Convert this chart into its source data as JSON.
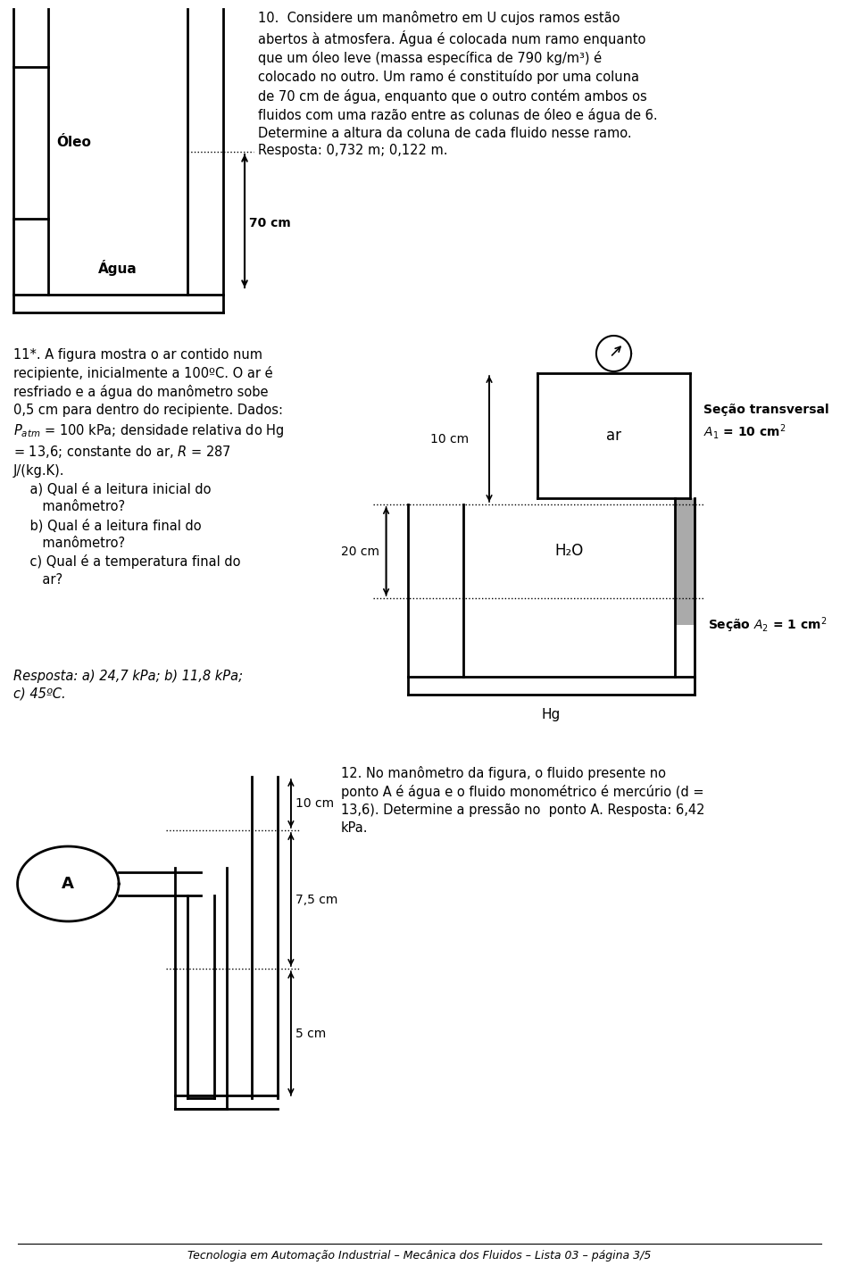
{
  "bg_color": "#ffffff",
  "text_color": "#000000",
  "problem10_text": "10.  Considere um manômetro em U cujos ramos estão\nabertos à atmosfera. Água é colocada num ramo enquanto\nque um óleo leve (massa específica de 790 kg/m³) é\ncolocado no outro. Um ramo é constituído por uma coluna\nde 70 cm de água, enquanto que o outro contém ambos os\nfluidos com uma razão entre as colunas de óleo e água de 6.\nDetermine a altura da coluna de cada fluido nesse ramo.\nResposta: 0,732 m; 0,122 m.",
  "problem11_full_text": "11*. A figura mostra o ar contido num\nrecipiente, inicialmente a 100ºC. O ar é\nresfriado e a água do manômetro sobe\n0,5 cm para dentro do recipiente. Dados:\n$P_{atm}$ = 100 kPa; densidade relativa do Hg\n= 13,6; constante do ar, $R$ = 287\nJ/(kg.K).\n    a) Qual é a leitura inicial do\n       manômetro?\n    b) Qual é a leitura final do\n       manômetro?\n    c) Qual é a temperatura final do\n       ar?",
  "problem11_answer": "Resposta: a) 24,7 kPa; b) 11,8 kPa;\nc) 45ºC.",
  "problem12_text": "12. No manômetro da figura, o fluido presente no\nponto A é água e o fluido monométrico é mercúrio (d =\n13,6). Determine a pressão no  ponto A. Resposta: 6,42\nkPa.",
  "footer_text": "Tecnologia em Automação Industrial – Mecânica dos Fluidos – Lista 03 – página 3/5"
}
